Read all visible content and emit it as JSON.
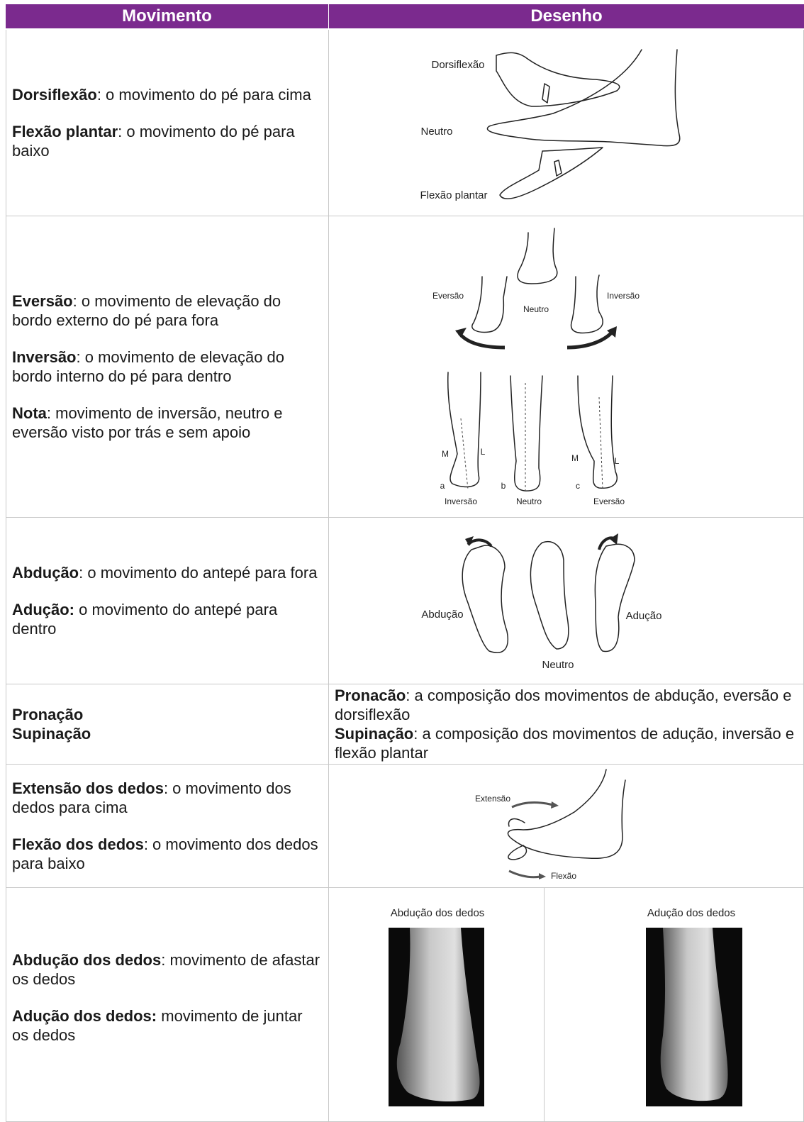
{
  "table": {
    "header": [
      "Movimento",
      "Desenho"
    ],
    "rows": [
      {
        "movement": [
          {
            "term": "Dorsiflexão",
            "text": ": o movimento do pé para cima"
          },
          {
            "term": "Flexão plantar",
            "text": ": o movimento do pé para baixo"
          }
        ],
        "drawing": {
          "labels": [
            "Dorsiflexão",
            "Neutro",
            "Flexão plantar"
          ]
        }
      },
      {
        "movement": [
          {
            "term": "Eversão",
            "text": ": o movimento de elevação do bordo externo do pé para fora"
          },
          {
            "term": "Inversão",
            "text": ": o movimento de elevação do bordo interno do pé para dentro"
          },
          {
            "term": "Nota",
            "text": ": movimento de inversão, neutro e eversão visto por trás e sem apoio"
          }
        ],
        "drawing": {
          "labels": [
            "Eversão",
            "Neutro",
            "Inversão",
            "M",
            "L",
            "a",
            "b",
            "c",
            "M",
            "L",
            "Inversão",
            "Neutro",
            "Eversão"
          ]
        }
      },
      {
        "movement": [
          {
            "term": "Abdução",
            "text": ": o movimento do antepé para fora"
          },
          {
            "term": "Adução:",
            "text": " o movimento do antepé para dentro"
          }
        ],
        "drawing": {
          "labels": [
            "Abdução",
            "Adução",
            "Neutro"
          ]
        }
      },
      {
        "terms": [
          "Pronação",
          "Supinação"
        ],
        "description": [
          {
            "term": "Pronacão",
            "text": ": a composição dos movimentos de abdução, eversão e dorsiflexão"
          },
          {
            "term": "Supinação",
            "text": ": a composição dos movimentos de adução, inversão e flexão plantar"
          }
        ]
      },
      {
        "movement": [
          {
            "term": "Extensão dos dedos",
            "text": ": o movimento dos dedos para cima"
          },
          {
            "term": "Flexão dos dedos",
            "text": ": o movimento dos dedos para baixo"
          }
        ],
        "drawing": {
          "labels": [
            "Extensão",
            "Flexão"
          ]
        }
      },
      {
        "movement": [
          {
            "term": "Abdução dos dedos",
            "text": ": movimento de afastar os dedos"
          },
          {
            "term": "Adução dos dedos:",
            "text": " movimento de juntar os dedos"
          }
        ],
        "drawing": {
          "captions": [
            "Abdução dos dedos",
            "Adução dos dedos"
          ]
        }
      }
    ]
  }
}
